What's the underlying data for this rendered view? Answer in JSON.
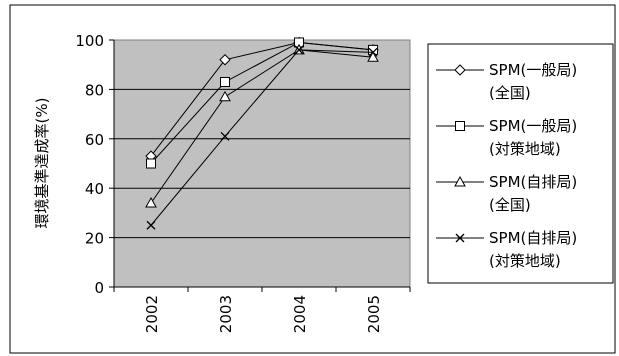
{
  "chart_data": {
    "type": "line",
    "title": "",
    "xlabel": "",
    "ylabel": "環境基準達成率(%)",
    "categories": [
      "2002",
      "2003",
      "2004",
      "2005"
    ],
    "ylim": [
      0,
      100
    ],
    "yticks": [
      "0",
      "20",
      "40",
      "60",
      "80",
      "100"
    ],
    "grid": true,
    "legend_position": "right",
    "plot_background": "#c0c0c0",
    "series": [
      {
        "name_line1": "SPM(一般局)",
        "name_line2": "(全国)",
        "marker": "diamond",
        "values": [
          53,
          92,
          99,
          96
        ]
      },
      {
        "name_line1": "SPM(一般局)",
        "name_line2": "(対策地域)",
        "marker": "square",
        "values": [
          50,
          83,
          99,
          96
        ]
      },
      {
        "name_line1": "SPM(自排局)",
        "name_line2": "(全国)",
        "marker": "triangle",
        "values": [
          34,
          77,
          96,
          93
        ]
      },
      {
        "name_line1": "SPM(自排局)",
        "name_line2": "(対策地域)",
        "marker": "x",
        "values": [
          25,
          61,
          96,
          95
        ]
      }
    ]
  }
}
